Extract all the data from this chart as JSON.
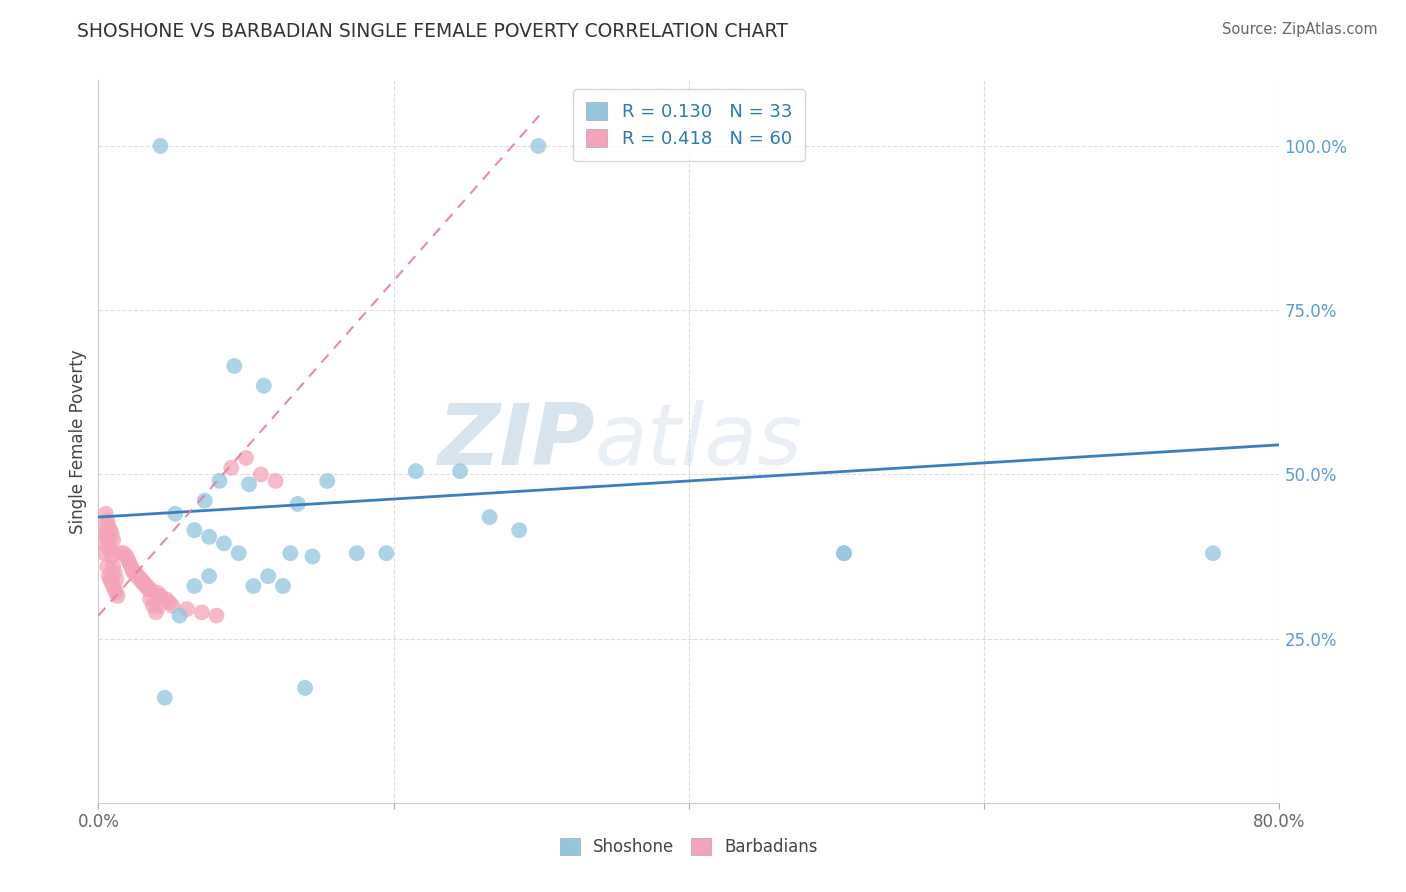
{
  "title": "SHOSHONE VS BARBADIAN SINGLE FEMALE POVERTY CORRELATION CHART",
  "source": "Source: ZipAtlas.com",
  "ylabel": "Single Female Poverty",
  "xlim": [
    0.0,
    0.8
  ],
  "ylim": [
    0.0,
    1.1
  ],
  "yticks": [
    0.25,
    0.5,
    0.75,
    1.0
  ],
  "ytick_labels": [
    "25.0%",
    "50.0%",
    "75.0%",
    "100.0%"
  ],
  "shoshone_color": "#92c5de",
  "barbadian_color": "#f4a3b8",
  "shoshone_R": 0.13,
  "shoshone_N": 33,
  "barbadian_R": 0.418,
  "barbadian_N": 60,
  "shoshone_x": [
    0.042,
    0.298,
    0.092,
    0.112,
    0.082,
    0.102,
    0.072,
    0.052,
    0.215,
    0.245,
    0.135,
    0.155,
    0.065,
    0.075,
    0.085,
    0.095,
    0.285,
    0.265,
    0.145,
    0.175,
    0.195,
    0.505,
    0.505,
    0.755,
    0.065,
    0.075,
    0.105,
    0.115,
    0.125,
    0.055,
    0.13,
    0.045,
    0.14
  ],
  "shoshone_y": [
    1.0,
    1.0,
    0.665,
    0.635,
    0.49,
    0.485,
    0.46,
    0.44,
    0.505,
    0.505,
    0.455,
    0.49,
    0.415,
    0.405,
    0.395,
    0.38,
    0.415,
    0.435,
    0.375,
    0.38,
    0.38,
    0.38,
    0.38,
    0.38,
    0.33,
    0.345,
    0.33,
    0.345,
    0.33,
    0.285,
    0.38,
    0.16,
    0.175
  ],
  "barbadian_x": [
    0.003,
    0.004,
    0.006,
    0.007,
    0.008,
    0.009,
    0.01,
    0.011,
    0.012,
    0.013,
    0.004,
    0.005,
    0.006,
    0.007,
    0.008,
    0.009,
    0.01,
    0.011,
    0.012,
    0.005,
    0.006,
    0.007,
    0.008,
    0.009,
    0.01,
    0.015,
    0.017,
    0.019,
    0.021,
    0.023,
    0.025,
    0.027,
    0.029,
    0.031,
    0.033,
    0.035,
    0.02,
    0.022,
    0.024,
    0.026,
    0.028,
    0.03,
    0.032,
    0.034,
    0.04,
    0.042,
    0.046,
    0.048,
    0.05,
    0.06,
    0.07,
    0.08,
    0.09,
    0.1,
    0.11,
    0.12,
    0.035,
    0.037,
    0.039,
    0.041
  ],
  "barbadian_y": [
    0.395,
    0.38,
    0.36,
    0.345,
    0.34,
    0.335,
    0.33,
    0.325,
    0.32,
    0.315,
    0.42,
    0.41,
    0.405,
    0.395,
    0.385,
    0.375,
    0.36,
    0.35,
    0.34,
    0.44,
    0.43,
    0.42,
    0.415,
    0.41,
    0.4,
    0.38,
    0.38,
    0.375,
    0.365,
    0.355,
    0.35,
    0.345,
    0.34,
    0.335,
    0.33,
    0.325,
    0.37,
    0.36,
    0.35,
    0.345,
    0.34,
    0.335,
    0.33,
    0.325,
    0.32,
    0.315,
    0.31,
    0.305,
    0.3,
    0.295,
    0.29,
    0.285,
    0.51,
    0.525,
    0.5,
    0.49,
    0.31,
    0.3,
    0.29,
    0.3
  ],
  "watermark_zip": "ZIP",
  "watermark_atlas": "atlas",
  "background_color": "#ffffff",
  "grid_color": "#dddddd",
  "trend_line_blue_color": "#3a7ebf",
  "trend_line_pink_color": "#e87ca0",
  "sho_trend_x0": 0.0,
  "sho_trend_y0": 0.435,
  "sho_trend_x1": 0.8,
  "sho_trend_y1": 0.545,
  "bar_trend_x0": 0.0,
  "bar_trend_y0": 0.285,
  "bar_trend_x1": 0.3,
  "bar_trend_y1": 1.05
}
